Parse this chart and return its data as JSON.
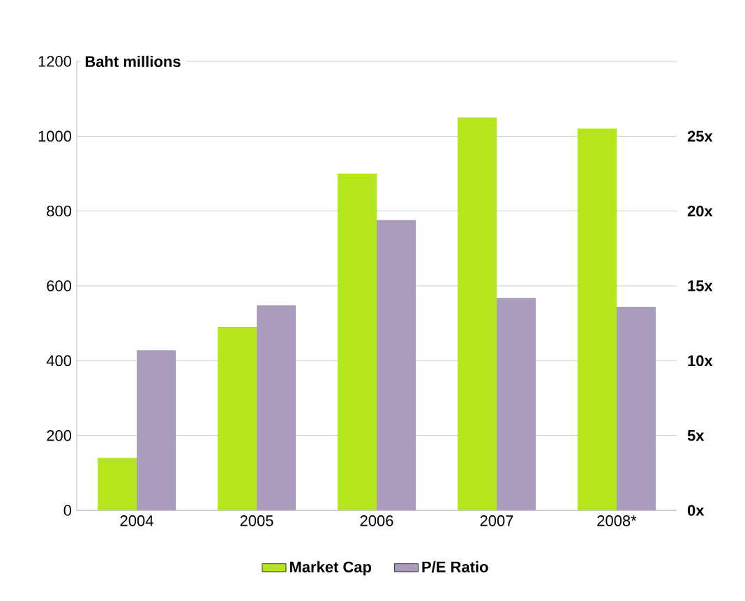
{
  "chart_data": {
    "type": "bar",
    "ylabel": "Baht millions",
    "categories": [
      "2004",
      "2005",
      "2006",
      "2007",
      "2008*"
    ],
    "series": [
      {
        "name": "Market Cap",
        "color": "#b5e61d",
        "values": [
          140,
          490,
          900,
          1050,
          1020
        ]
      },
      {
        "name": "P/E Ratio",
        "color": "#aa9cbc",
        "axis": "y2",
        "values": [
          10.7,
          13.7,
          19.4,
          14.2,
          13.6
        ]
      }
    ],
    "ylim": [
      0,
      1200
    ],
    "yticks": [
      0,
      200,
      400,
      600,
      800,
      1000,
      1200
    ],
    "y2lim": [
      0,
      30
    ],
    "y2ticks": [
      {
        "value": 0,
        "label": "0x"
      },
      {
        "value": 5,
        "label": "5x"
      },
      {
        "value": 10,
        "label": "10x"
      },
      {
        "value": 15,
        "label": "15x"
      },
      {
        "value": 20,
        "label": "20x"
      },
      {
        "value": 25,
        "label": "25x"
      },
      {
        "value": 30,
        "label": null
      }
    ],
    "grid": "y",
    "legend": "bottom"
  }
}
